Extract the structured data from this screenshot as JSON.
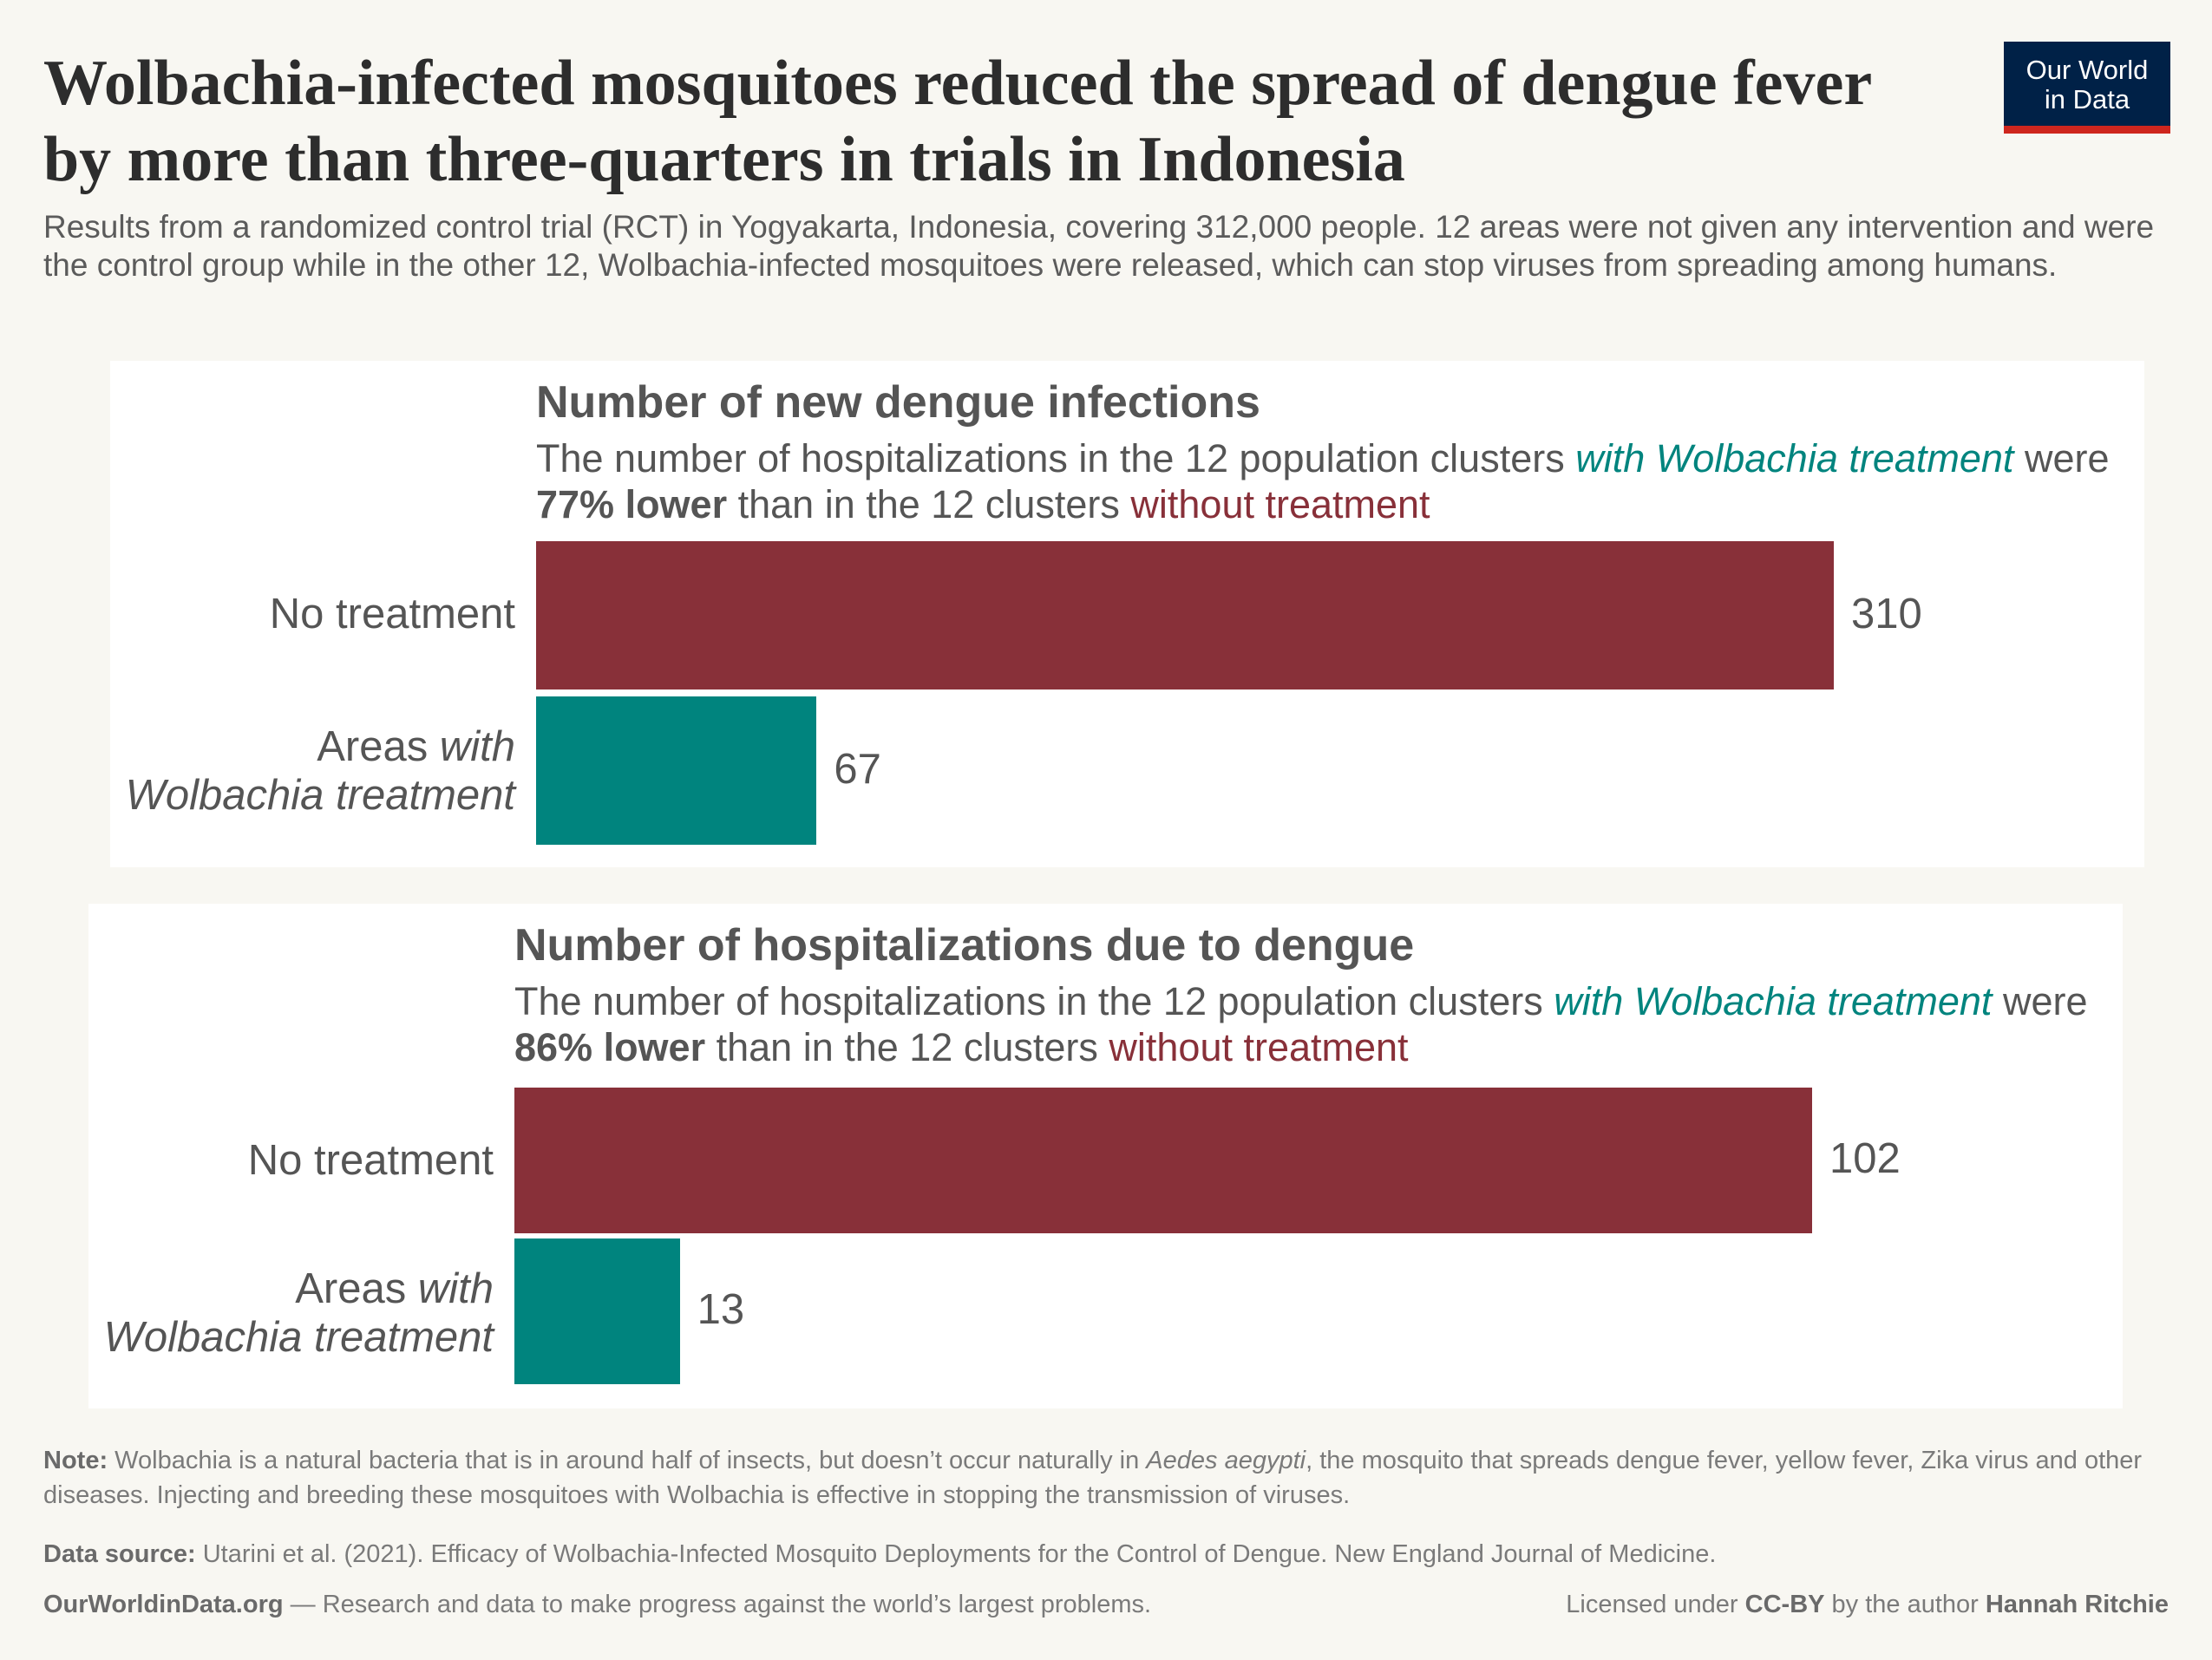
{
  "title": "Wolbachia-infected mosquitoes reduced the spread of dengue fever by more than three-quarters in trials in Indonesia",
  "subtitle": "Results from a randomized control trial (RCT) in Yogyakarta, Indonesia, covering 312,000 people. 12 areas were not given any intervention and were the control group while in the other 12, Wolbachia-infected mosquitoes were released, which can stop viruses from spreading among humans.",
  "logo": "Our World in Data",
  "colors": {
    "no_treatment": "#883039",
    "wolbachia": "#00847e"
  },
  "chart_data": [
    {
      "type": "bar",
      "orientation": "horizontal",
      "title": "Number of new dengue infections",
      "desc": {
        "a": "The number of hospitalizations in the 12 population clusters ",
        "b": "with Wolbachia treatment",
        "c": " were ",
        "d": "77% lower",
        "e": " than in the 12 clusters ",
        "f": "without treatment"
      },
      "categories": [
        {
          "a": "Areas ",
          "b": "with"
        },
        "No treatment"
      ],
      "cat_labels": [
        "No treatment",
        "Areas with Wolbachia treatment"
      ],
      "values": [
        310,
        67
      ],
      "value_labels": [
        "310",
        "67"
      ]
    },
    {
      "type": "bar",
      "orientation": "horizontal",
      "title": "Number of hospitalizations due to dengue",
      "desc": {
        "a": "The number of hospitalizations in the 12 population clusters ",
        "b": "with Wolbachia treatment",
        "c": " were ",
        "d": "86% lower",
        "e": " than in the 12 clusters ",
        "f": "without treatment"
      },
      "cat_labels": [
        "No treatment",
        "Areas with Wolbachia treatment"
      ],
      "values": [
        102,
        13
      ],
      "value_labels": [
        "102",
        "13"
      ]
    }
  ],
  "footer": {
    "note_label": "Note:",
    "note_a": " Wolbachia is a natural bacteria that is in around half of insects, but doesn’t occur naturally in ",
    "note_i": "Aedes aegypti",
    "note_b": ", the mosquito that spreads dengue fever, yellow fever, Zika virus and other diseases. Injecting and breeding these mosquitoes with Wolbachia is effective in stopping the transmission of viruses.",
    "source_label": "Data source:",
    "source": " Utarini et al. (2021). Efficacy of Wolbachia-Infected Mosquito Deployments for the Control of Dengue. New England Journal of Medicine.",
    "site": "OurWorldinData.org",
    "tagline": " — Research and data to make progress against the world’s largest problems.",
    "license_a": "Licensed under ",
    "license_b": "CC-BY",
    "license_c": " by the author ",
    "author": "Hannah Ritchie"
  }
}
